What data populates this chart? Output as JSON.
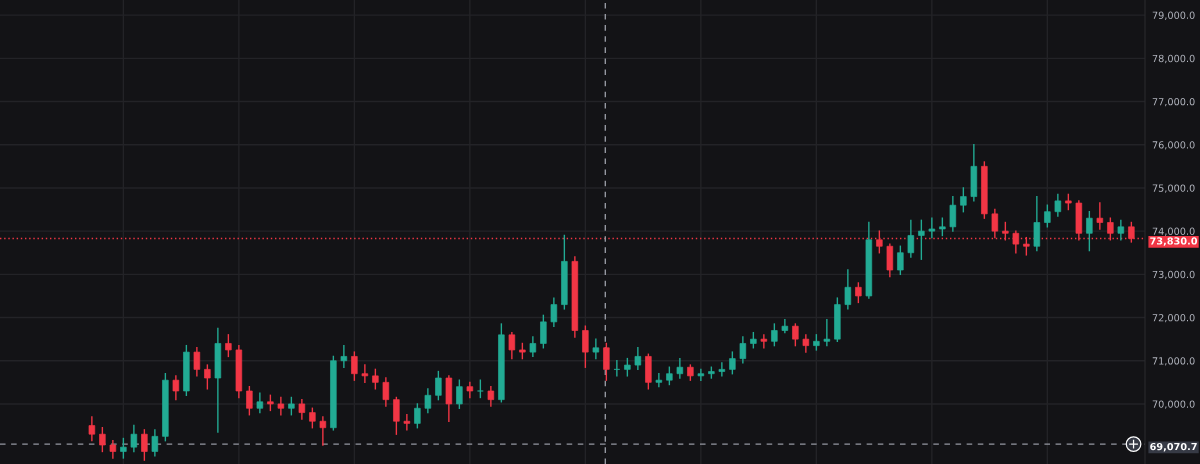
{
  "chart_data": {
    "type": "candlestick",
    "categories": [
      null,
      null,
      null,
      null,
      null,
      null,
      null,
      null,
      null,
      null,
      null,
      null,
      null,
      null,
      null,
      null,
      null,
      null,
      null,
      null,
      null,
      null,
      null,
      null,
      null,
      null,
      null,
      null,
      null,
      null,
      null,
      null,
      null,
      null,
      null,
      null,
      null,
      null,
      null,
      null,
      null,
      null,
      null,
      null,
      null,
      null,
      null,
      null,
      null,
      null,
      null,
      null,
      null,
      null,
      null,
      null,
      null,
      null,
      null,
      null,
      null,
      null,
      null,
      null,
      null,
      null,
      null,
      null,
      null,
      null,
      null,
      null,
      null,
      null,
      null,
      null,
      null,
      null,
      null,
      null,
      null,
      null,
      null,
      null,
      null,
      null,
      null,
      null,
      null,
      null,
      null,
      null,
      null,
      null,
      null,
      null,
      null,
      null,
      null,
      null
    ],
    "ohlc": [
      [
        69500,
        69700,
        69150,
        69300
      ],
      [
        69300,
        69450,
        68900,
        69050
      ],
      [
        69050,
        69150,
        68750,
        68900
      ],
      [
        68900,
        69200,
        68750,
        69000
      ],
      [
        69000,
        69500,
        68900,
        69300
      ],
      [
        69300,
        69400,
        68700,
        68900
      ],
      [
        68900,
        69400,
        68800,
        69250
      ],
      [
        69250,
        70700,
        69150,
        70550
      ],
      [
        70550,
        70650,
        70100,
        70300
      ],
      [
        70300,
        71350,
        70200,
        71200
      ],
      [
        71200,
        71300,
        70650,
        70800
      ],
      [
        70800,
        70900,
        70350,
        70600
      ],
      [
        70600,
        71750,
        69350,
        71400
      ],
      [
        71400,
        71600,
        71100,
        71250
      ],
      [
        71250,
        71350,
        70150,
        70300
      ],
      [
        70300,
        70400,
        69750,
        69900
      ],
      [
        69900,
        70250,
        69800,
        70050
      ],
      [
        70050,
        70200,
        69850,
        70000
      ],
      [
        70000,
        70150,
        69750,
        69900
      ],
      [
        69900,
        70150,
        69750,
        70000
      ],
      [
        70000,
        70100,
        69650,
        69800
      ],
      [
        69800,
        69900,
        69450,
        69600
      ],
      [
        69600,
        69700,
        69050,
        69450
      ],
      [
        69450,
        71100,
        69400,
        71000
      ],
      [
        71000,
        71350,
        70850,
        71100
      ],
      [
        71100,
        71200,
        70550,
        70700
      ],
      [
        70700,
        70900,
        70500,
        70650
      ],
      [
        70650,
        70800,
        70350,
        70500
      ],
      [
        70500,
        70600,
        69950,
        70100
      ],
      [
        70100,
        70150,
        69300,
        69600
      ],
      [
        69600,
        69750,
        69400,
        69550
      ],
      [
        69550,
        70000,
        69450,
        69900
      ],
      [
        69900,
        70350,
        69800,
        70200
      ],
      [
        70200,
        70750,
        70100,
        70600
      ],
      [
        70600,
        70650,
        69600,
        70000
      ],
      [
        70000,
        70550,
        69900,
        70400
      ],
      [
        70400,
        70500,
        70150,
        70300
      ],
      [
        70300,
        70550,
        70150,
        70300
      ],
      [
        70300,
        70400,
        69950,
        70100
      ],
      [
        70100,
        71850,
        70050,
        71600
      ],
      [
        71600,
        71650,
        71050,
        71250
      ],
      [
        71250,
        71400,
        71050,
        71200
      ],
      [
        71200,
        71550,
        71100,
        71400
      ],
      [
        71400,
        72050,
        71300,
        71900
      ],
      [
        71900,
        72450,
        71800,
        72300
      ],
      [
        72300,
        73900,
        72200,
        73300
      ],
      [
        73300,
        73400,
        71550,
        71700
      ],
      [
        71700,
        71800,
        70850,
        71200
      ],
      [
        71200,
        71500,
        71050,
        71300
      ],
      [
        71300,
        71400,
        70550,
        70800
      ],
      [
        70800,
        71000,
        70650,
        70800
      ],
      [
        70800,
        71050,
        70650,
        70900
      ],
      [
        70900,
        71300,
        70800,
        71100
      ],
      [
        71100,
        71150,
        70350,
        70500
      ],
      [
        70500,
        70700,
        70400,
        70550
      ],
      [
        70550,
        70850,
        70450,
        70700
      ],
      [
        70700,
        71050,
        70600,
        70850
      ],
      [
        70850,
        70900,
        70550,
        70650
      ],
      [
        70650,
        70800,
        70550,
        70700
      ],
      [
        70700,
        70850,
        70600,
        70750
      ],
      [
        70750,
        70950,
        70650,
        70800
      ],
      [
        70800,
        71200,
        70700,
        71050
      ],
      [
        71050,
        71550,
        70950,
        71400
      ],
      [
        71400,
        71650,
        71300,
        71500
      ],
      [
        71500,
        71600,
        71300,
        71450
      ],
      [
        71450,
        71850,
        71350,
        71700
      ],
      [
        71700,
        71950,
        71650,
        71800
      ],
      [
        71800,
        71850,
        71350,
        71500
      ],
      [
        71500,
        71600,
        71200,
        71350
      ],
      [
        71350,
        71600,
        71250,
        71450
      ],
      [
        71450,
        71950,
        71350,
        71500
      ],
      [
        71500,
        72450,
        71450,
        72300
      ],
      [
        72300,
        73100,
        72200,
        72700
      ],
      [
        72700,
        72800,
        72350,
        72500
      ],
      [
        72500,
        74200,
        72450,
        73800
      ],
      [
        73800,
        74000,
        73500,
        73650
      ],
      [
        73650,
        73700,
        72950,
        73100
      ],
      [
        73100,
        73650,
        73000,
        73500
      ],
      [
        73500,
        74250,
        73400,
        73900
      ],
      [
        73900,
        74250,
        73350,
        74000
      ],
      [
        74000,
        74300,
        73850,
        74050
      ],
      [
        74050,
        74300,
        73900,
        74100
      ],
      [
        74100,
        74800,
        74000,
        74600
      ],
      [
        74600,
        75000,
        74450,
        74800
      ],
      [
        74800,
        76000,
        74700,
        75500
      ],
      [
        75500,
        75600,
        74300,
        74400
      ],
      [
        74400,
        74500,
        73850,
        74000
      ],
      [
        74000,
        74200,
        73800,
        73950
      ],
      [
        73950,
        74000,
        73500,
        73700
      ],
      [
        73700,
        73850,
        73450,
        73650
      ],
      [
        73650,
        74800,
        73550,
        74200
      ],
      [
        74200,
        74600,
        74100,
        74450
      ],
      [
        74450,
        74850,
        74350,
        74700
      ],
      [
        74700,
        74850,
        74500,
        74650
      ],
      [
        74650,
        74700,
        73800,
        73950
      ],
      [
        73950,
        74450,
        73550,
        74300
      ],
      [
        74300,
        74650,
        74050,
        74200
      ],
      [
        74200,
        74300,
        73800,
        73950
      ],
      [
        73950,
        74250,
        73800,
        74100
      ],
      [
        74100,
        74200,
        73750,
        73830
      ]
    ],
    "ylim": [
      68610,
      79350
    ],
    "yticks": [
      {
        "value": 70000,
        "label": "70,000.0"
      },
      {
        "value": 71000,
        "label": "71,000.0"
      },
      {
        "value": 72000,
        "label": "72,000.0"
      },
      {
        "value": 73000,
        "label": "73,000.0"
      },
      {
        "value": 74000,
        "label": "74,000.0"
      },
      {
        "value": 75000,
        "label": "75,000.0"
      },
      {
        "value": 76000,
        "label": "76,000.0"
      },
      {
        "value": 77000,
        "label": "77,000.0"
      },
      {
        "value": 78000,
        "label": "78,000.0"
      },
      {
        "value": 79000,
        "label": "79,000.0"
      }
    ],
    "tick_labels": "y",
    "grid": true,
    "ref_lines": [
      {
        "axis": "y",
        "value": 73830,
        "label": "73,830.0",
        "color": "#f23645",
        "line_style": "dotted"
      },
      {
        "axis": "y",
        "value": 69070.7,
        "label": "69,070.7",
        "color": "#9598a1",
        "line_style": "dashed"
      }
    ]
  }
}
